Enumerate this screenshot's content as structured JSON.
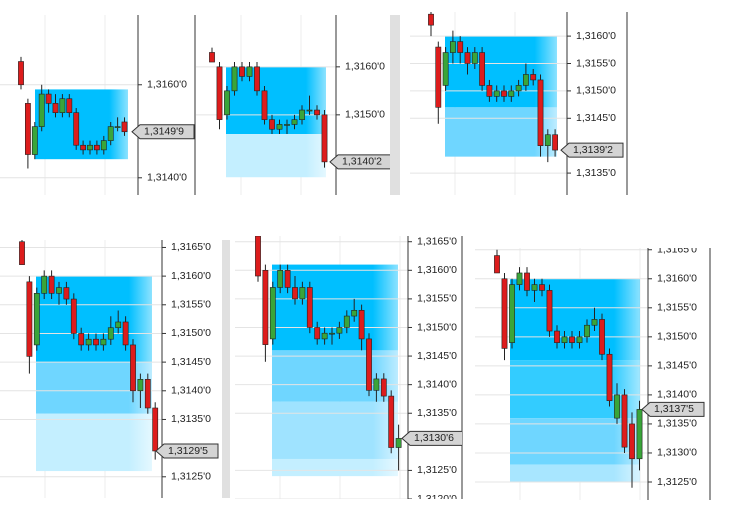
{
  "chart_data": [
    {
      "type": "candlestick",
      "up_color": "#3aa53a",
      "down_color": "#dd1c1c",
      "zone_colors": [
        "#00bfff",
        "#8fdcff"
      ],
      "ylim": [
        1.31363,
        1.3175
      ],
      "yticks": [
        {
          "value": 1.314,
          "label": "1,3140'0"
        },
        {
          "value": 1.316,
          "label": "1,3160'0"
        }
      ],
      "last_price": {
        "value": 1.31499,
        "label": "1,3149'9"
      },
      "zones": [
        [
          1.3144,
          1.3159
        ]
      ],
      "open": [
        1.3165,
        1.3156,
        1.3145,
        1.3151,
        1.3158,
        1.3156,
        1.3154,
        1.3157,
        1.3154,
        1.3147,
        1.3146,
        1.3147,
        1.3146,
        1.3148,
        1.3151,
        1.3152
      ],
      "high": [
        1.3166,
        1.3157,
        1.3152,
        1.316,
        1.3159,
        1.3158,
        1.3158,
        1.3158,
        1.3155,
        1.3148,
        1.3148,
        1.3148,
        1.3149,
        1.3152,
        1.3153,
        1.3153
      ],
      "low": [
        1.3159,
        1.3142,
        1.3144,
        1.315,
        1.3154,
        1.3153,
        1.3153,
        1.3153,
        1.3146,
        1.3145,
        1.3145,
        1.3145,
        1.3145,
        1.3147,
        1.315,
        1.3149
      ],
      "close": [
        1.316,
        1.3145,
        1.3151,
        1.3158,
        1.3156,
        1.3154,
        1.3157,
        1.3154,
        1.3147,
        1.3146,
        1.3147,
        1.3146,
        1.3148,
        1.3151,
        1.3151,
        1.31499
      ]
    },
    {
      "type": "candlestick",
      "up_color": "#3aa53a",
      "down_color": "#dd1c1c",
      "zone_colors": [
        "#00bfff",
        "#c4efff"
      ],
      "ylim": [
        1.31333,
        1.31708
      ],
      "yticks": [
        {
          "value": 1.315,
          "label": "1,3150'0"
        },
        {
          "value": 1.316,
          "label": "1,3160'0"
        }
      ],
      "last_price": {
        "value": 1.31402,
        "label": "1,3140'2"
      },
      "zones": [
        [
          1.3146,
          1.316
        ],
        [
          1.3137,
          1.3146
        ]
      ],
      "open": [
        1.3163,
        1.316,
        1.315,
        1.3155,
        1.316,
        1.3158,
        1.316,
        1.3155,
        1.3149,
        1.3147,
        1.3148,
        1.3148,
        1.3149,
        1.3151,
        1.3151,
        1.315
      ],
      "high": [
        1.3164,
        1.3161,
        1.3156,
        1.3161,
        1.3161,
        1.3161,
        1.3161,
        1.3156,
        1.315,
        1.3149,
        1.3149,
        1.315,
        1.3152,
        1.3154,
        1.3152,
        1.3151
      ],
      "low": [
        1.3161,
        1.3147,
        1.3149,
        1.3154,
        1.3157,
        1.3157,
        1.3154,
        1.3148,
        1.3146,
        1.3146,
        1.3146,
        1.3147,
        1.3148,
        1.315,
        1.3149,
        1.3139
      ],
      "close": [
        1.3161,
        1.3149,
        1.3155,
        1.316,
        1.3158,
        1.316,
        1.3155,
        1.3149,
        1.3147,
        1.3148,
        1.3148,
        1.3149,
        1.3151,
        1.3151,
        1.315,
        1.31402
      ]
    },
    {
      "type": "candlestick",
      "up_color": "#3aa53a",
      "down_color": "#dd1c1c",
      "zone_colors": [
        "#00bfff",
        "#6fd6ff"
      ],
      "ylim": [
        1.3131,
        1.31644
      ],
      "yticks": [
        {
          "value": 1.3135,
          "label": "1,3135'0"
        },
        {
          "value": 1.3145,
          "label": "1,3145'0"
        },
        {
          "value": 1.315,
          "label": "1,3150'0"
        },
        {
          "value": 1.3155,
          "label": "1,3155'0"
        },
        {
          "value": 1.316,
          "label": "1,3160'0"
        }
      ],
      "last_price": {
        "value": 1.31392,
        "label": "1,3139'2"
      },
      "zones": [
        [
          1.3147,
          1.316
        ],
        [
          1.3138,
          1.3147
        ]
      ],
      "open": [
        1.3164,
        1.3158,
        1.3151,
        1.3157,
        1.3159,
        1.3157,
        1.3155,
        1.3157,
        1.3151,
        1.3149,
        1.315,
        1.3149,
        1.315,
        1.3151,
        1.3153,
        1.3152,
        1.314,
        1.3142
      ],
      "high": [
        1.3165,
        1.3159,
        1.3158,
        1.3161,
        1.316,
        1.3158,
        1.3158,
        1.3158,
        1.3152,
        1.3151,
        1.3151,
        1.3151,
        1.3152,
        1.3155,
        1.3154,
        1.3153,
        1.3143,
        1.3143
      ],
      "low": [
        1.316,
        1.3144,
        1.315,
        1.3155,
        1.3155,
        1.3153,
        1.3154,
        1.315,
        1.3148,
        1.3148,
        1.3148,
        1.3148,
        1.3149,
        1.315,
        1.3151,
        1.3138,
        1.3137,
        1.3138
      ],
      "close": [
        1.3162,
        1.3147,
        1.3157,
        1.3159,
        1.3157,
        1.3155,
        1.3157,
        1.3151,
        1.3149,
        1.315,
        1.3149,
        1.315,
        1.3151,
        1.3153,
        1.3152,
        1.314,
        1.3142,
        1.31392
      ]
    },
    {
      "type": "candlestick",
      "up_color": "#3aa53a",
      "down_color": "#dd1c1c",
      "zone_colors": [
        "#00bfff",
        "#6fd6ff",
        "#c4efff"
      ],
      "ylim": [
        1.31213,
        1.31663
      ],
      "yticks": [
        {
          "value": 1.3125,
          "label": "1,3125'0"
        },
        {
          "value": 1.3135,
          "label": "1,3135'0"
        },
        {
          "value": 1.314,
          "label": "1,3140'0"
        },
        {
          "value": 1.3145,
          "label": "1,3145'0"
        },
        {
          "value": 1.315,
          "label": "1,3150'0"
        },
        {
          "value": 1.3155,
          "label": "1,3155'0"
        },
        {
          "value": 1.316,
          "label": "1,3160'0"
        },
        {
          "value": 1.3165,
          "label": "1,3165'0"
        }
      ],
      "last_price": {
        "value": 1.31295,
        "label": "1,3129'5"
      },
      "zones": [
        [
          1.3145,
          1.316
        ],
        [
          1.3136,
          1.3145
        ],
        [
          1.3126,
          1.3136
        ]
      ],
      "open": [
        1.3166,
        1.3159,
        1.3148,
        1.3157,
        1.316,
        1.3157,
        1.3158,
        1.3156,
        1.315,
        1.3148,
        1.3149,
        1.3148,
        1.3149,
        1.3151,
        1.3152,
        1.3148,
        1.314,
        1.3142,
        1.3137
      ],
      "high": [
        1.3167,
        1.316,
        1.3158,
        1.3161,
        1.3161,
        1.3159,
        1.3159,
        1.3157,
        1.3151,
        1.315,
        1.315,
        1.315,
        1.3153,
        1.3154,
        1.3153,
        1.3149,
        1.3143,
        1.3143,
        1.3138
      ],
      "low": [
        1.3162,
        1.3143,
        1.3147,
        1.3156,
        1.3156,
        1.3155,
        1.3155,
        1.3149,
        1.3147,
        1.3147,
        1.3147,
        1.3147,
        1.3148,
        1.315,
        1.3147,
        1.3138,
        1.3137,
        1.3136,
        1.3128
      ],
      "close": [
        1.3162,
        1.3146,
        1.3157,
        1.316,
        1.3157,
        1.3158,
        1.3156,
        1.315,
        1.3148,
        1.3149,
        1.3148,
        1.3149,
        1.3151,
        1.3152,
        1.3148,
        1.314,
        1.3142,
        1.3137,
        1.31295
      ]
    },
    {
      "type": "candlestick",
      "up_color": "#3aa53a",
      "down_color": "#dd1c1c",
      "zone_colors": [
        "#00bfff",
        "#6fd6ff",
        "#9fe3ff",
        "#c4efff"
      ],
      "ylim": [
        1.312,
        1.3166
      ],
      "yticks": [
        {
          "value": 1.312,
          "label": "1,3120'0"
        },
        {
          "value": 1.3125,
          "label": "1,3125'0"
        },
        {
          "value": 1.3135,
          "label": "1,3135'0"
        },
        {
          "value": 1.314,
          "label": "1,3140'0"
        },
        {
          "value": 1.3145,
          "label": "1,3145'0"
        },
        {
          "value": 1.315,
          "label": "1,3150'0"
        },
        {
          "value": 1.3155,
          "label": "1,3155'0"
        },
        {
          "value": 1.316,
          "label": "1,3160'0"
        },
        {
          "value": 1.3165,
          "label": "1,3165'0"
        }
      ],
      "last_price": {
        "value": 1.31306,
        "label": "1,3130'6"
      },
      "zones": [
        [
          1.3146,
          1.3161
        ],
        [
          1.3137,
          1.3146
        ],
        [
          1.3127,
          1.3137
        ],
        [
          1.3124,
          1.3127
        ]
      ],
      "open": [
        1.3166,
        1.316,
        1.3148,
        1.3157,
        1.316,
        1.3157,
        1.3155,
        1.3157,
        1.315,
        1.3148,
        1.3149,
        1.3149,
        1.315,
        1.3152,
        1.3153,
        1.3148,
        1.3139,
        1.3141,
        1.3138,
        1.3129
      ],
      "high": [
        1.3166,
        1.3161,
        1.3158,
        1.3161,
        1.3161,
        1.3159,
        1.3158,
        1.3158,
        1.3151,
        1.315,
        1.315,
        1.3151,
        1.3153,
        1.3155,
        1.3154,
        1.3149,
        1.3142,
        1.3142,
        1.3139,
        1.3133
      ],
      "low": [
        1.3158,
        1.3144,
        1.3147,
        1.3156,
        1.3156,
        1.3154,
        1.3154,
        1.3149,
        1.3147,
        1.3147,
        1.3147,
        1.3148,
        1.3149,
        1.3151,
        1.3146,
        1.3138,
        1.3137,
        1.3137,
        1.3128,
        1.3125
      ],
      "close": [
        1.3159,
        1.3147,
        1.3157,
        1.316,
        1.3157,
        1.3155,
        1.3157,
        1.315,
        1.3148,
        1.3149,
        1.3149,
        1.315,
        1.3152,
        1.3153,
        1.3148,
        1.3139,
        1.3141,
        1.3138,
        1.3129,
        1.31306
      ]
    },
    {
      "type": "candlestick",
      "up_color": "#3aa53a",
      "down_color": "#dd1c1c",
      "zone_colors": [
        "#00bfff",
        "#33ccff",
        "#6fd6ff",
        "#a8e6ff"
      ],
      "ylim": [
        1.31219,
        1.31653
      ],
      "yticks": [
        {
          "value": 1.3125,
          "label": "1,3125'0"
        },
        {
          "value": 1.313,
          "label": "1,3130'0"
        },
        {
          "value": 1.3135,
          "label": "1,3135'0"
        },
        {
          "value": 1.314,
          "label": "1,3140'0"
        },
        {
          "value": 1.3145,
          "label": "1,3145'0"
        },
        {
          "value": 1.315,
          "label": "1,3150'0"
        },
        {
          "value": 1.3155,
          "label": "1,3155'0"
        },
        {
          "value": 1.316,
          "label": "1,3160'0"
        },
        {
          "value": 1.3165,
          "label": "1,3165'0"
        }
      ],
      "last_price": {
        "value": 1.31375,
        "label": "1,3137'5"
      },
      "zones": [
        [
          1.3146,
          1.316
        ],
        [
          1.3136,
          1.3146
        ],
        [
          1.3128,
          1.3136
        ],
        [
          1.3125,
          1.3128
        ]
      ],
      "open": [
        1.3164,
        1.316,
        1.3149,
        1.3159,
        1.3161,
        1.3158,
        1.3159,
        1.3158,
        1.3151,
        1.3149,
        1.315,
        1.3149,
        1.315,
        1.3152,
        1.3153,
        1.3147,
        1.3136,
        1.314,
        1.3135,
        1.3129
      ],
      "high": [
        1.3165,
        1.3161,
        1.316,
        1.3162,
        1.3162,
        1.316,
        1.316,
        1.3159,
        1.3152,
        1.3151,
        1.3151,
        1.3151,
        1.3153,
        1.3155,
        1.3154,
        1.3148,
        1.3142,
        1.3141,
        1.3137,
        1.3139
      ],
      "low": [
        1.3161,
        1.3146,
        1.3148,
        1.3158,
        1.3157,
        1.3156,
        1.3157,
        1.315,
        1.3148,
        1.3148,
        1.3148,
        1.3148,
        1.3149,
        1.3151,
        1.3146,
        1.3138,
        1.3135,
        1.313,
        1.3124,
        1.3127
      ],
      "close": [
        1.3161,
        1.3148,
        1.3159,
        1.3161,
        1.3158,
        1.3159,
        1.3158,
        1.3151,
        1.3149,
        1.315,
        1.3149,
        1.315,
        1.3152,
        1.3153,
        1.3147,
        1.3139,
        1.314,
        1.3131,
        1.3129,
        1.31375
      ]
    }
  ]
}
